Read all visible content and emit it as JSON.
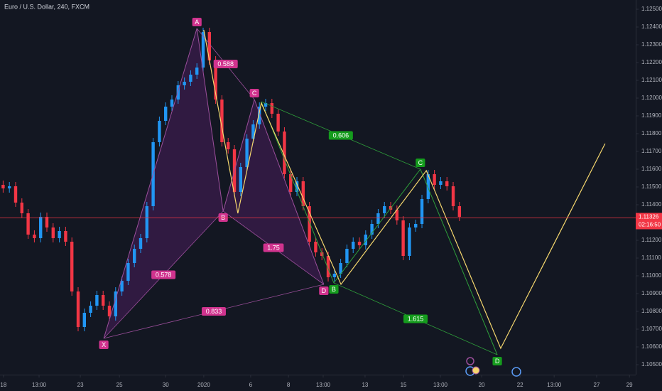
{
  "chart_data": {
    "type": "candlestick",
    "title": "Euro / U.S. Dollar, 240, FXCM",
    "up_color": "#2196f3",
    "down_color": "#f23645",
    "xlim": [
      0,
      203.4
    ],
    "ylim": [
      1.10444,
      1.12552
    ],
    "grid": false,
    "xticks": [
      {
        "value": 1.1,
        "label": "18"
      },
      {
        "value": 12.5,
        "label": "13:00"
      },
      {
        "value": 25.7,
        "label": "23"
      },
      {
        "value": 38.2,
        "label": "25"
      },
      {
        "value": 53,
        "label": "30"
      },
      {
        "value": 65.2,
        "label": "2020"
      },
      {
        "value": 80.2,
        "label": "6"
      },
      {
        "value": 92.3,
        "label": "8"
      },
      {
        "value": 103.4,
        "label": "13:00"
      },
      {
        "value": 116.8,
        "label": "13"
      },
      {
        "value": 129.1,
        "label": "15"
      },
      {
        "value": 140.9,
        "label": "13:00"
      },
      {
        "value": 154.1,
        "label": "20"
      },
      {
        "value": 166.4,
        "label": "22"
      },
      {
        "value": 177.3,
        "label": "13:00"
      },
      {
        "value": 190.9,
        "label": "27"
      },
      {
        "value": 201.4,
        "label": "29"
      }
    ],
    "yticks": [
      {
        "value": 1.125,
        "label": "1.12500"
      },
      {
        "value": 1.124,
        "label": "1.12400"
      },
      {
        "value": 1.123,
        "label": "1.12300"
      },
      {
        "value": 1.122,
        "label": "1.12200"
      },
      {
        "value": 1.121,
        "label": "1.12100"
      },
      {
        "value": 1.12,
        "label": "1.12000"
      },
      {
        "value": 1.119,
        "label": "1.11900"
      },
      {
        "value": 1.118,
        "label": "1.11800"
      },
      {
        "value": 1.117,
        "label": "1.11700"
      },
      {
        "value": 1.116,
        "label": "1.11600"
      },
      {
        "value": 1.115,
        "label": "1.11500"
      },
      {
        "value": 1.114,
        "label": "1.11400"
      },
      {
        "value": 1.112,
        "label": "1.11200"
      },
      {
        "value": 1.111,
        "label": "1.11100"
      },
      {
        "value": 1.11,
        "label": "1.11000"
      },
      {
        "value": 1.109,
        "label": "1.10900"
      },
      {
        "value": 1.108,
        "label": "1.10800"
      },
      {
        "value": 1.107,
        "label": "1.10700"
      },
      {
        "value": 1.106,
        "label": "1.10600"
      },
      {
        "value": 1.105,
        "label": "1.10500"
      }
    ],
    "last_price": 1.11326,
    "last_price_color": "#f23645",
    "countdown": "02:16:50",
    "x": [
      1,
      3,
      5,
      7,
      9,
      11,
      13,
      15,
      17,
      19,
      21,
      23,
      25,
      27,
      29,
      31,
      33,
      35,
      37,
      39,
      41,
      43,
      45,
      47,
      49,
      51,
      53,
      55,
      57,
      59,
      61,
      63,
      65,
      67,
      69,
      71,
      73,
      75,
      77,
      79,
      81,
      83,
      85,
      87,
      89,
      91,
      93,
      95,
      97,
      99,
      101,
      103,
      105,
      107,
      109,
      111,
      113,
      115,
      117,
      119,
      121,
      123,
      125,
      127,
      129,
      131,
      133,
      135,
      137,
      139,
      141,
      143,
      145,
      147
    ],
    "open": [
      1.11512,
      1.11492,
      1.11504,
      1.11412,
      1.11352,
      1.11232,
      1.11212,
      1.11332,
      1.11272,
      1.11212,
      1.11252,
      1.11192,
      1.10912,
      1.10712,
      1.10792,
      1.10832,
      1.10892,
      1.10832,
      1.10772,
      1.10912,
      1.10972,
      1.11072,
      1.11152,
      1.11212,
      1.11392,
      1.11752,
      1.11872,
      1.11952,
      1.11992,
      1.12072,
      1.12092,
      1.12132,
      1.12172,
      1.12372,
      1.12212,
      1.11992,
      1.11752,
      1.11712,
      1.11472,
      1.11612,
      1.11772,
      1.11852,
      1.11952,
      1.11972,
      1.11912,
      1.11812,
      1.11572,
      1.11472,
      1.11532,
      1.11392,
      1.11192,
      1.11132,
      1.11112,
      1.10992,
      1.11012,
      1.11072,
      1.11152,
      1.11192,
      1.11172,
      1.11232,
      1.11292,
      1.11352,
      1.11392,
      1.11372,
      1.11312,
      1.11112,
      1.11272,
      1.11292,
      1.11432,
      1.11572,
      1.11512,
      1.11532,
      1.11504,
      1.11392
    ],
    "high": [
      1.11536,
      1.11528,
      1.11528,
      1.11436,
      1.11376,
      1.11256,
      1.11356,
      1.11356,
      1.11296,
      1.11276,
      1.11276,
      1.11216,
      1.10936,
      1.10816,
      1.10856,
      1.10916,
      1.10916,
      1.10856,
      1.10936,
      1.10996,
      1.11096,
      1.11176,
      1.11236,
      1.11416,
      1.11776,
      1.11896,
      1.11976,
      1.12016,
      1.12096,
      1.12116,
      1.12156,
      1.12196,
      1.12396,
      1.12396,
      1.12236,
      1.12016,
      1.11776,
      1.11736,
      1.11636,
      1.11796,
      1.11876,
      1.11976,
      1.11996,
      1.11996,
      1.11936,
      1.11836,
      1.11596,
      1.11556,
      1.11556,
      1.11416,
      1.11216,
      1.11156,
      1.11136,
      1.11036,
      1.11096,
      1.11176,
      1.11216,
      1.11216,
      1.11256,
      1.11316,
      1.11376,
      1.11416,
      1.11416,
      1.11396,
      1.11336,
      1.11296,
      1.11316,
      1.11456,
      1.11596,
      1.11596,
      1.11556,
      1.11556,
      1.11528,
      1.11416
    ],
    "low": [
      1.11468,
      1.11468,
      1.11388,
      1.11328,
      1.11208,
      1.11188,
      1.11188,
      1.11248,
      1.11188,
      1.11188,
      1.11168,
      1.10888,
      1.10688,
      1.10688,
      1.10768,
      1.10808,
      1.10808,
      1.10748,
      1.10748,
      1.10888,
      1.10948,
      1.11048,
      1.11128,
      1.11188,
      1.11368,
      1.11728,
      1.11848,
      1.11928,
      1.11968,
      1.12048,
      1.12068,
      1.12108,
      1.12148,
      1.12188,
      1.11968,
      1.11728,
      1.11688,
      1.11448,
      1.11448,
      1.11588,
      1.11748,
      1.11828,
      1.11928,
      1.11888,
      1.11788,
      1.11548,
      1.11448,
      1.11448,
      1.11368,
      1.11168,
      1.11108,
      1.11088,
      1.10968,
      1.10968,
      1.10988,
      1.11048,
      1.11128,
      1.11148,
      1.11148,
      1.11208,
      1.11268,
      1.11328,
      1.11348,
      1.11288,
      1.11088,
      1.11088,
      1.11248,
      1.11268,
      1.11408,
      1.11488,
      1.11488,
      1.1148,
      1.11368,
      1.11308
    ],
    "close": [
      1.11492,
      1.11504,
      1.11412,
      1.11352,
      1.11232,
      1.11212,
      1.11332,
      1.11272,
      1.11212,
      1.11252,
      1.11192,
      1.10912,
      1.10712,
      1.10792,
      1.10832,
      1.10892,
      1.10832,
      1.10772,
      1.10912,
      1.10972,
      1.11072,
      1.11152,
      1.11212,
      1.11392,
      1.11752,
      1.11872,
      1.11952,
      1.11992,
      1.12072,
      1.12092,
      1.12132,
      1.12172,
      1.12372,
      1.12212,
      1.11992,
      1.11752,
      1.11712,
      1.11472,
      1.11612,
      1.11772,
      1.11852,
      1.11952,
      1.11972,
      1.11912,
      1.11812,
      1.11572,
      1.11472,
      1.11532,
      1.11392,
      1.11192,
      1.11132,
      1.11112,
      1.10992,
      1.11012,
      1.11072,
      1.11152,
      1.11192,
      1.11172,
      1.11232,
      1.11292,
      1.11352,
      1.11392,
      1.11372,
      1.11312,
      1.11112,
      1.11272,
      1.11292,
      1.11432,
      1.11572,
      1.11512,
      1.11532,
      1.11504,
      1.11392,
      1.11332
    ],
    "patterns": [
      {
        "color": "#9c4f9c",
        "label_color": "#d0338e",
        "fill": true,
        "points": [
          {
            "label": "X",
            "x": 33.2,
            "y": 1.10648
          },
          {
            "label": "A",
            "x": 63,
            "y": 1.12392
          },
          {
            "label": "B",
            "x": 71.4,
            "y": 1.11364
          },
          {
            "label": "C",
            "x": 81.4,
            "y": 1.11992
          },
          {
            "label": "D",
            "x": 103.6,
            "y": 1.10952
          }
        ],
        "ratios": [
          {
            "from": 1,
            "to": 3,
            "value": 0.588
          },
          {
            "from": 0,
            "to": 2,
            "value": 0.578
          },
          {
            "from": 0,
            "to": 4,
            "value": 0.833
          },
          {
            "from": 2,
            "to": 4,
            "value": 1.75
          }
        ]
      },
      {
        "color": "#2e9e3a",
        "label_color": "#159c1d",
        "fill": false,
        "points": [
          {
            "label": null,
            "x": 83.6,
            "y": 1.1198
          },
          {
            "label": "B",
            "x": 106.8,
            "y": 1.1096
          },
          {
            "label": "C",
            "x": 134.5,
            "y": 1.116
          },
          {
            "label": "D",
            "x": 159.1,
            "y": 1.10556
          }
        ],
        "ratios": [
          {
            "from": 0,
            "to": 2,
            "value": 0.606
          },
          {
            "from": 1,
            "to": 3,
            "value": 1.615
          }
        ]
      }
    ],
    "projection": {
      "color": "#f5d76e",
      "x": [
        65.2,
        76.1,
        83.6,
        109.1,
        136.4,
        160.2,
        193.6
      ],
      "y": [
        1.12384,
        1.11352,
        1.11972,
        1.10952,
        1.11592,
        1.10592,
        1.11744
      ]
    }
  }
}
